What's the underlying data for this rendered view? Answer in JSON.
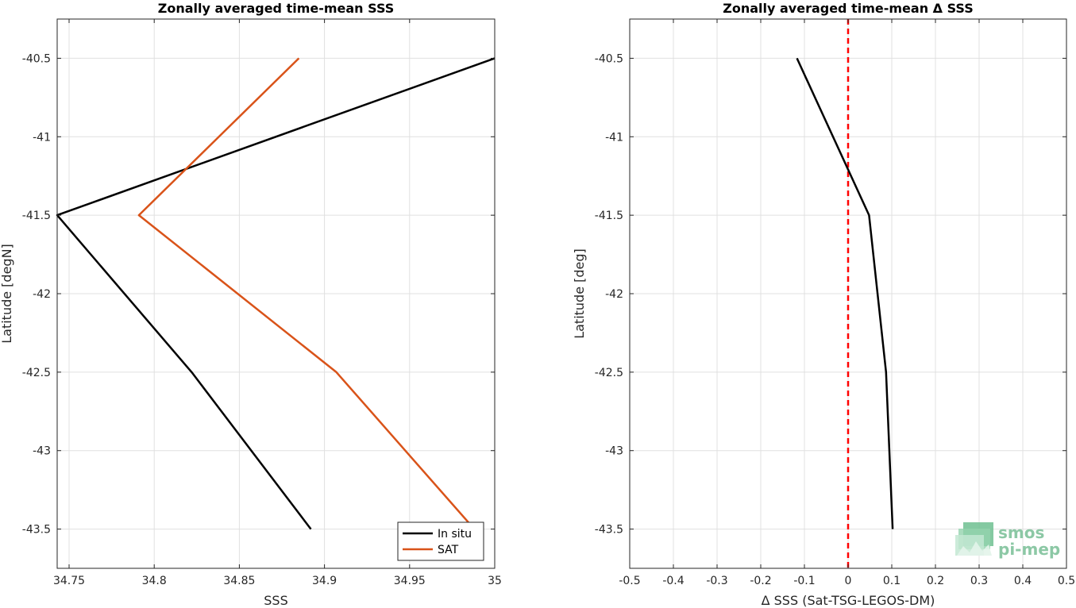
{
  "chart_data": [
    {
      "type": "line",
      "title": "Zonally averaged time-mean SSS",
      "xlabel": "SSS",
      "ylabel": "Latitude [degN]",
      "xlim": [
        34.743,
        35.0
      ],
      "ylim": [
        -43.75,
        -40.25
      ],
      "xticks": [
        34.75,
        34.8,
        34.85,
        34.9,
        34.95,
        35
      ],
      "xtick_labels": [
        "34.75",
        "34.8",
        "34.85",
        "34.9",
        "34.95",
        "35"
      ],
      "yticks": [
        -40.5,
        -41,
        -41.5,
        -42,
        -42.5,
        -43,
        -43.5
      ],
      "ytick_labels": [
        "-40.5",
        "-41",
        "-41.5",
        "-42",
        "-42.5",
        "-43",
        "-43.5"
      ],
      "grid": true,
      "legend": "bottom-right",
      "series": [
        {
          "name": "In situ",
          "color": "#000000",
          "x": [
            35.0,
            34.743,
            34.822,
            34.892
          ],
          "y": [
            -40.5,
            -41.5,
            -42.5,
            -43.5
          ]
        },
        {
          "name": "SAT",
          "color": "#D95319",
          "x": [
            34.885,
            34.791,
            34.907,
            34.988
          ],
          "y": [
            -40.5,
            -41.5,
            -42.5,
            -43.5
          ]
        }
      ]
    },
    {
      "type": "line",
      "title": "Zonally averaged time-mean Δ SSS",
      "xlabel": "Δ SSS (Sat-TSG-LEGOS-DM)",
      "ylabel": "Latitude [deg]",
      "xlim": [
        -0.5,
        0.5
      ],
      "ylim": [
        -43.75,
        -40.25
      ],
      "xticks": [
        -0.5,
        -0.4,
        -0.3,
        -0.2,
        -0.1,
        0,
        0.1,
        0.2,
        0.3,
        0.4,
        0.5
      ],
      "xtick_labels": [
        "-0.5",
        "-0.4",
        "-0.3",
        "-0.2",
        "-0.1",
        "0",
        "0.1",
        "0.2",
        "0.3",
        "0.4",
        "0.5"
      ],
      "yticks": [
        -40.5,
        -41,
        -41.5,
        -42,
        -42.5,
        -43,
        -43.5
      ],
      "ytick_labels": [
        "-40.5",
        "-41",
        "-41.5",
        "-42",
        "-42.5",
        "-43",
        "-43.5"
      ],
      "grid": true,
      "reference_line": {
        "x": 0,
        "color": "#FF0000",
        "style": "dashed"
      },
      "series": [
        {
          "color": "#000000",
          "x": [
            -0.117,
            0.048,
            0.087,
            0.102
          ],
          "y": [
            -40.5,
            -41.5,
            -42.5,
            -43.5
          ]
        }
      ]
    }
  ],
  "logo": {
    "line1": "smos",
    "line2": "pi-mep",
    "color": "#8cc8a5"
  }
}
